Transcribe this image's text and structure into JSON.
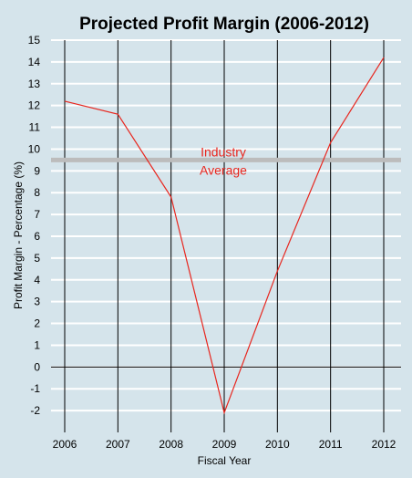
{
  "chart_data": {
    "type": "line",
    "title": "Projected Profit Margin (2006-2012)",
    "xlabel": "Fiscal Year",
    "ylabel": "Profit Margin - Percentage (%)",
    "x": [
      "2006",
      "2007",
      "2008",
      "2009",
      "2010",
      "2011",
      "2012"
    ],
    "series": [
      {
        "values": [
          12.2,
          11.6,
          7.8,
          -2.1,
          4.4,
          10.3,
          14.2
        ],
        "color": "#e8261e"
      }
    ],
    "yticks": [
      "15",
      "14",
      "13",
      "12",
      "11",
      "10",
      "9",
      "8",
      "7",
      "6",
      "5",
      "4",
      "3",
      "2",
      "1",
      "0",
      "-1",
      "-2"
    ],
    "ylim": [
      -3,
      15
    ],
    "reference_line": {
      "value": 9.5,
      "label_line1": "Industry",
      "label_line2": "Average",
      "color": "#bcbcbc",
      "label_color": "#e8261e"
    },
    "grid": {
      "horizontal": true,
      "horizontal_color": "#ffffff",
      "vertical": true,
      "vertical_color": "#000000"
    },
    "background": "#d5e4eb",
    "line_color": "#e8261e"
  }
}
